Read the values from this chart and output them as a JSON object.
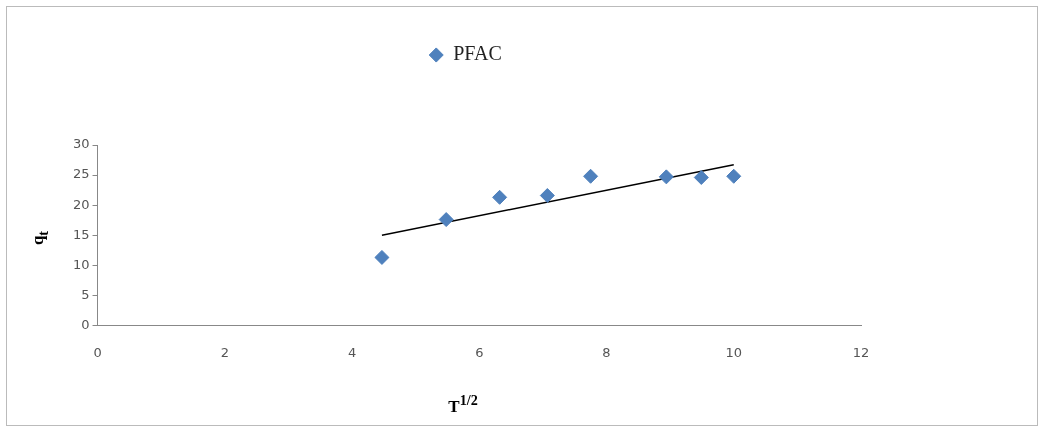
{
  "chart_data": {
    "type": "scatter",
    "xlabel": "T$^{1/2}$",
    "ylabel": "q$_{t}$",
    "xlim": [
      0,
      12
    ],
    "xticks": [
      0,
      2,
      4,
      6,
      8,
      10,
      12
    ],
    "ylim": [
      0,
      30
    ],
    "yticks": [
      0,
      5,
      10,
      15,
      20,
      25,
      30
    ],
    "grid": false,
    "legend": "top",
    "series": [
      {
        "name": "PFAC",
        "marker": "diamond",
        "color": "#4f81bd",
        "x": [
          4.47,
          5.48,
          6.32,
          7.07,
          7.75,
          8.94,
          9.49,
          10
        ],
        "values": [
          11.3,
          17.6,
          21.3,
          21.6,
          24.8,
          24.7,
          24.6,
          24.8
        ]
      },
      {
        "type": "line",
        "marker": "none",
        "color": "#000000",
        "x": [
          4.47,
          10
        ],
        "values": [
          15,
          26.7
        ]
      }
    ]
  }
}
